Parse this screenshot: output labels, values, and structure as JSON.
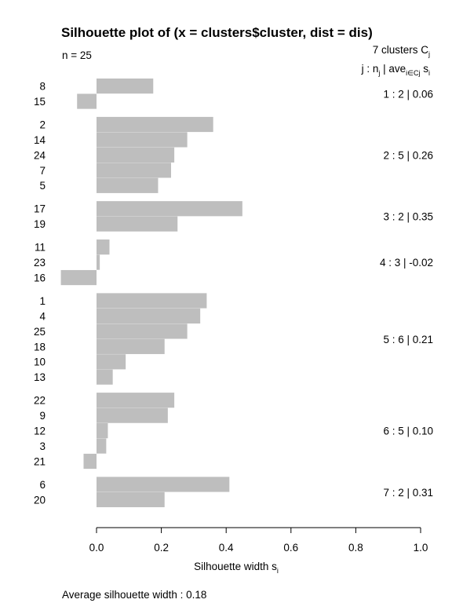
{
  "chart_data": {
    "type": "bar",
    "orientation": "horizontal",
    "title": "Silhouette plot of (x = clusters$cluster, dist = dis)",
    "n_label": "n = 25",
    "header_line1": "7  clusters  C",
    "header_line1_sub": "j",
    "header_line2": {
      "j": "j :  n",
      "j_sub": "j",
      "bar_ave": " | ave",
      "ave_sub": "i∈Cj",
      "s": "  s",
      "s_sub": "i"
    },
    "xlabel": "Silhouette width s",
    "xlabel_sub": "i",
    "xlim": [
      -0.1,
      1.0
    ],
    "x_ticks": [
      "0.0",
      "0.2",
      "0.4",
      "0.6",
      "0.8",
      "1.0"
    ],
    "x_tick_values": [
      0.0,
      0.2,
      0.4,
      0.6,
      0.8,
      1.0
    ],
    "average_text": "Average silhouette width :  0.18",
    "bar_color": "#bebebe",
    "clusters": [
      {
        "summary": "1 :  2  |  0.06",
        "members": [
          {
            "id": "8",
            "s": 0.175
          },
          {
            "id": "15",
            "s": -0.06
          }
        ]
      },
      {
        "summary": "2 :  5  |  0.26",
        "members": [
          {
            "id": "2",
            "s": 0.36
          },
          {
            "id": "14",
            "s": 0.28
          },
          {
            "id": "24",
            "s": 0.24
          },
          {
            "id": "7",
            "s": 0.23
          },
          {
            "id": "5",
            "s": 0.19
          }
        ]
      },
      {
        "summary": "3 :  2  |  0.35",
        "members": [
          {
            "id": "17",
            "s": 0.45
          },
          {
            "id": "19",
            "s": 0.25
          }
        ]
      },
      {
        "summary": "4 :  3  |  -0.02",
        "members": [
          {
            "id": "11",
            "s": 0.04
          },
          {
            "id": "23",
            "s": 0.01
          },
          {
            "id": "16",
            "s": -0.11
          }
        ]
      },
      {
        "summary": "5 :  6  |  0.21",
        "members": [
          {
            "id": "1",
            "s": 0.34
          },
          {
            "id": "4",
            "s": 0.32
          },
          {
            "id": "25",
            "s": 0.28
          },
          {
            "id": "18",
            "s": 0.21
          },
          {
            "id": "10",
            "s": 0.09
          },
          {
            "id": "13",
            "s": 0.05
          }
        ]
      },
      {
        "summary": "6 :  5  |  0.10",
        "members": [
          {
            "id": "22",
            "s": 0.24
          },
          {
            "id": "9",
            "s": 0.22
          },
          {
            "id": "12",
            "s": 0.035
          },
          {
            "id": "3",
            "s": 0.03
          },
          {
            "id": "21",
            "s": -0.04
          }
        ]
      },
      {
        "summary": "7 :  2  |  0.31",
        "members": [
          {
            "id": "6",
            "s": 0.41
          },
          {
            "id": "20",
            "s": 0.21
          }
        ]
      }
    ]
  }
}
